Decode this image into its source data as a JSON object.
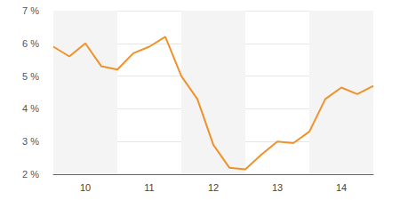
{
  "chart_data": {
    "type": "line",
    "categories": [
      null,
      null,
      "10",
      null,
      null,
      null,
      "11",
      null,
      null,
      null,
      "12",
      null,
      null,
      null,
      "13",
      null,
      null,
      null,
      "14",
      null,
      null
    ],
    "values": [
      5.9,
      5.6,
      6.0,
      5.3,
      5.2,
      5.7,
      5.9,
      6.2,
      5.0,
      4.3,
      2.9,
      2.2,
      2.15,
      2.6,
      3.0,
      2.95,
      3.3,
      4.3,
      4.65,
      4.45,
      4.7
    ],
    "color": "#f0922b",
    "ylim": [
      2,
      7
    ],
    "yticks": [
      {
        "value": 2,
        "label": "2 %"
      },
      {
        "value": 3,
        "label": "3 %"
      },
      {
        "value": 4,
        "label": "4 %"
      },
      {
        "value": 5,
        "label": "5 %"
      },
      {
        "value": 6,
        "label": "6 %"
      },
      {
        "value": 7,
        "label": "7 %"
      }
    ],
    "grid": true
  }
}
